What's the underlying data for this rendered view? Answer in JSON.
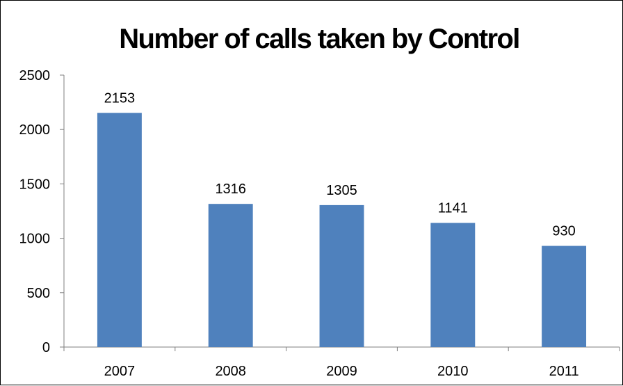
{
  "chart_data": {
    "type": "bar",
    "title": "Number of calls taken by Control",
    "categories": [
      "2007",
      "2008",
      "2009",
      "2010",
      "2011"
    ],
    "values": [
      2153,
      1316,
      1305,
      1141,
      930
    ],
    "data_labels": [
      "2153",
      "1316",
      "1305",
      "1141",
      "930"
    ],
    "y_ticks": [
      "0",
      "500",
      "1000",
      "1500",
      "2000",
      "2500"
    ],
    "ylim": [
      0,
      2500
    ],
    "xlabel": "",
    "ylabel": "",
    "grid": false,
    "legend": "none",
    "bar_color": "#4F81BD"
  }
}
